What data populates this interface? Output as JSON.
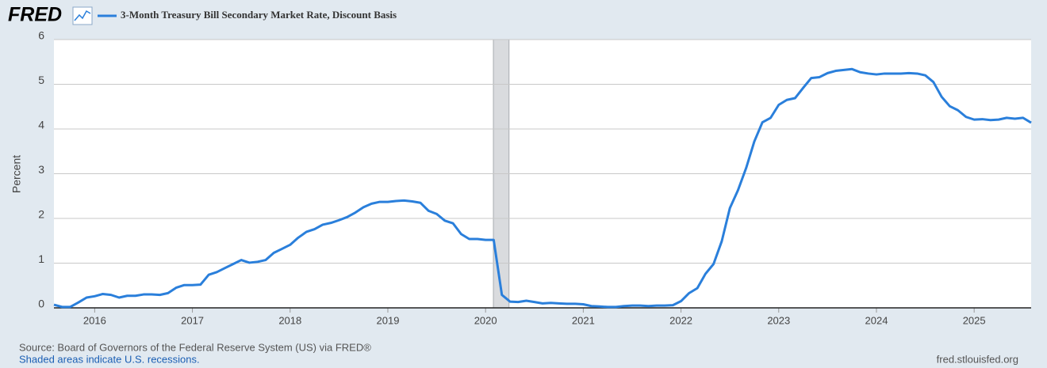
{
  "chart_data": {
    "type": "line",
    "brand": "FRED",
    "ylabel": "Percent",
    "source": "Source: Board of Governors of the Federal Reserve System (US) via FRED®",
    "note": "Shaded areas indicate U.S. recessions.",
    "credit": "fred.stlouisfed.org",
    "x": [
      2015.583,
      2015.667,
      2015.75,
      2015.833,
      2015.917,
      2016,
      2016.083,
      2016.167,
      2016.25,
      2016.333,
      2016.417,
      2016.5,
      2016.583,
      2016.667,
      2016.75,
      2016.833,
      2016.917,
      2017,
      2017.083,
      2017.167,
      2017.25,
      2017.333,
      2017.417,
      2017.5,
      2017.583,
      2017.667,
      2017.75,
      2017.833,
      2017.917,
      2018,
      2018.083,
      2018.167,
      2018.25,
      2018.333,
      2018.417,
      2018.5,
      2018.583,
      2018.667,
      2018.75,
      2018.833,
      2018.917,
      2019,
      2019.083,
      2019.167,
      2019.25,
      2019.333,
      2019.417,
      2019.5,
      2019.583,
      2019.667,
      2019.75,
      2019.833,
      2019.917,
      2020,
      2020.083,
      2020.167,
      2020.25,
      2020.333,
      2020.417,
      2020.5,
      2020.583,
      2020.667,
      2020.75,
      2020.833,
      2020.917,
      2021,
      2021.083,
      2021.167,
      2021.25,
      2021.333,
      2021.417,
      2021.5,
      2021.583,
      2021.667,
      2021.75,
      2021.833,
      2021.917,
      2022,
      2022.083,
      2022.167,
      2022.25,
      2022.333,
      2022.417,
      2022.5,
      2022.583,
      2022.667,
      2022.75,
      2022.833,
      2022.917,
      2023,
      2023.083,
      2023.167,
      2023.25,
      2023.333,
      2023.417,
      2023.5,
      2023.583,
      2023.667,
      2023.75,
      2023.833,
      2023.917,
      2024,
      2024.083,
      2024.167,
      2024.25,
      2024.333,
      2024.417,
      2024.5,
      2024.583,
      2024.667,
      2024.75,
      2024.833,
      2024.917,
      2025,
      2025.083,
      2025.167,
      2025.25,
      2025.333,
      2025.417,
      2025.5,
      2025.583
    ],
    "series": [
      {
        "name": "3-Month Treasury Bill Secondary Market Rate, Discount Basis",
        "color": "#2a7fdb",
        "values": [
          0.07,
          0.02,
          0.02,
          0.12,
          0.23,
          0.26,
          0.31,
          0.29,
          0.23,
          0.27,
          0.27,
          0.3,
          0.3,
          0.29,
          0.33,
          0.45,
          0.51,
          0.51,
          0.52,
          0.74,
          0.8,
          0.89,
          0.98,
          1.07,
          1.01,
          1.03,
          1.07,
          1.23,
          1.32,
          1.41,
          1.57,
          1.7,
          1.76,
          1.86,
          1.9,
          1.96,
          2.03,
          2.13,
          2.25,
          2.33,
          2.37,
          2.37,
          2.39,
          2.4,
          2.38,
          2.35,
          2.17,
          2.1,
          1.95,
          1.89,
          1.65,
          1.54,
          1.54,
          1.52,
          1.52,
          0.29,
          0.14,
          0.13,
          0.16,
          0.13,
          0.1,
          0.11,
          0.1,
          0.09,
          0.09,
          0.08,
          0.04,
          0.03,
          0.02,
          0.02,
          0.04,
          0.05,
          0.05,
          0.04,
          0.05,
          0.05,
          0.06,
          0.15,
          0.33,
          0.44,
          0.76,
          0.98,
          1.49,
          2.23,
          2.63,
          3.13,
          3.72,
          4.15,
          4.25,
          4.54,
          4.65,
          4.69,
          4.92,
          5.14,
          5.16,
          5.25,
          5.3,
          5.32,
          5.34,
          5.27,
          5.24,
          5.22,
          5.24,
          5.24,
          5.24,
          5.25,
          5.24,
          5.2,
          5.05,
          4.72,
          4.51,
          4.42,
          4.27,
          4.21,
          4.22,
          4.2,
          4.21,
          4.25,
          4.23,
          4.25,
          4.14
        ]
      }
    ],
    "recessions": [
      [
        2020.08,
        2020.24
      ]
    ],
    "xlim": [
      2015.583,
      2025.583
    ],
    "xticks": [
      2016,
      2017,
      2018,
      2019,
      2020,
      2021,
      2022,
      2023,
      2024,
      2025
    ],
    "ylim": [
      0,
      6
    ],
    "yticks": [
      0,
      1,
      2,
      3,
      4,
      5,
      6
    ],
    "grid": true
  }
}
